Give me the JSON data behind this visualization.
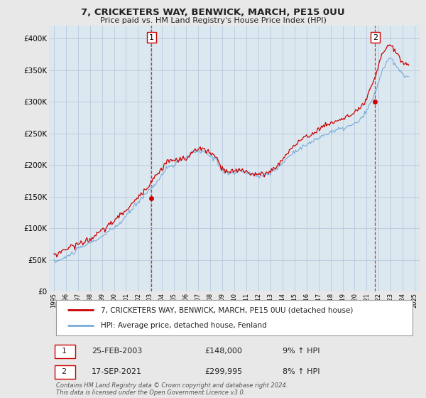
{
  "title": "7, CRICKETERS WAY, BENWICK, MARCH, PE15 0UU",
  "subtitle": "Price paid vs. HM Land Registry's House Price Index (HPI)",
  "ylim": [
    0,
    420000
  ],
  "yticks": [
    0,
    50000,
    100000,
    150000,
    200000,
    250000,
    300000,
    350000,
    400000
  ],
  "ytick_labels": [
    "£0",
    "£50K",
    "£100K",
    "£150K",
    "£200K",
    "£250K",
    "£300K",
    "£350K",
    "£400K"
  ],
  "bg_color": "#e8e8e8",
  "plot_bg_color": "#dce8f0",
  "grid_color": "#b0c4d8",
  "red_color": "#cc0000",
  "blue_color": "#7aabda",
  "legend_label1": "7, CRICKETERS WAY, BENWICK, MARCH, PE15 0UU (detached house)",
  "legend_label2": "HPI: Average price, detached house, Fenland",
  "purchase1_label": "25-FEB-2003",
  "purchase1_price": 148000,
  "purchase1_price_str": "£148,000",
  "purchase1_hpi": "9% ↑ HPI",
  "purchase2_label": "17-SEP-2021",
  "purchase2_price": 299995,
  "purchase2_price_str": "£299,995",
  "purchase2_hpi": "8% ↑ HPI",
  "footnote": "Contains HM Land Registry data © Crown copyright and database right 2024.\nThis data is licensed under the Open Government Licence v3.0.",
  "purchase1_x": 2003.12,
  "purchase2_x": 2021.71,
  "xlim_left": 1994.6,
  "xlim_right": 2025.4
}
